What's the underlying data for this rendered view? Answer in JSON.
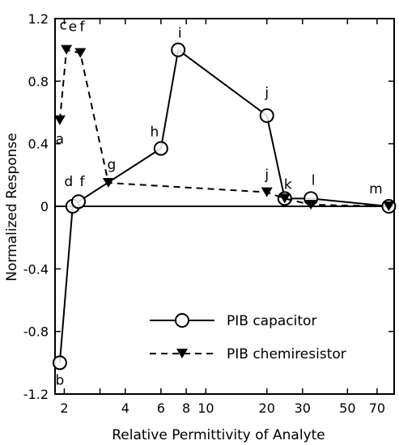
{
  "chart_data": {
    "type": "line",
    "title": "",
    "xlabel": "Relative Permittivity of Analyte",
    "ylabel": "Normalized Response",
    "x_scale": "log",
    "xlim": [
      1.8,
      85
    ],
    "ylim": [
      -1.2,
      1.2
    ],
    "x_ticks": [
      2,
      3,
      4,
      6,
      8,
      10,
      20,
      30,
      50,
      70
    ],
    "x_tick_labels": [
      "2",
      "",
      "4",
      "6",
      "8",
      "10",
      "20",
      "30",
      "50",
      "70"
    ],
    "y_ticks": [
      -1.2,
      -0.8,
      -0.4,
      0,
      0.4,
      0.8,
      1.2
    ],
    "y_tick_labels": [
      "-1.2",
      "-0.8",
      "-0.4",
      "0",
      "0.4",
      "0.8",
      "1.2"
    ],
    "grid": false,
    "legend_position": "lower-right",
    "series": [
      {
        "name": "PIB capacitor",
        "line_style": "solid",
        "marker": "open-circle",
        "points": [
          {
            "x": 1.9,
            "y": -1.0,
            "label": "b"
          },
          {
            "x": 2.2,
            "y": 0.0,
            "label": ""
          },
          {
            "x": 2.35,
            "y": 0.03,
            "label": ""
          },
          {
            "x": 6.0,
            "y": 0.37,
            "label": "h"
          },
          {
            "x": 7.3,
            "y": 1.0,
            "label": "i"
          },
          {
            "x": 20.0,
            "y": 0.58,
            "label": "j"
          },
          {
            "x": 24.5,
            "y": 0.05,
            "label": ""
          },
          {
            "x": 33.0,
            "y": 0.05,
            "label": "l"
          },
          {
            "x": 80.0,
            "y": 0.0,
            "label": "m"
          }
        ]
      },
      {
        "name": "PIB chemiresistor",
        "line_style": "dashed",
        "marker": "filled-triangle-down",
        "points": [
          {
            "x": 1.9,
            "y": 0.55,
            "label": "a"
          },
          {
            "x": 2.05,
            "y": 1.0,
            "label": ""
          },
          {
            "x": 2.4,
            "y": 0.98,
            "label": ""
          },
          {
            "x": 3.3,
            "y": 0.15,
            "label": "g"
          },
          {
            "x": 20.0,
            "y": 0.09,
            "label": "j"
          },
          {
            "x": 24.5,
            "y": 0.05,
            "label": "k"
          },
          {
            "x": 33.0,
            "y": 0.01,
            "label": ""
          },
          {
            "x": 80.0,
            "y": 0.0,
            "label": ""
          }
        ]
      }
    ],
    "annotations": [
      {
        "text": "c",
        "x": 1.98,
        "y": 1.13
      },
      {
        "text": "e",
        "x": 2.2,
        "y": 1.12
      },
      {
        "text": "f",
        "x": 2.45,
        "y": 1.12
      },
      {
        "text": "d",
        "x": 2.1,
        "y": 0.13
      },
      {
        "text": "f",
        "x": 2.45,
        "y": 0.13
      }
    ]
  }
}
